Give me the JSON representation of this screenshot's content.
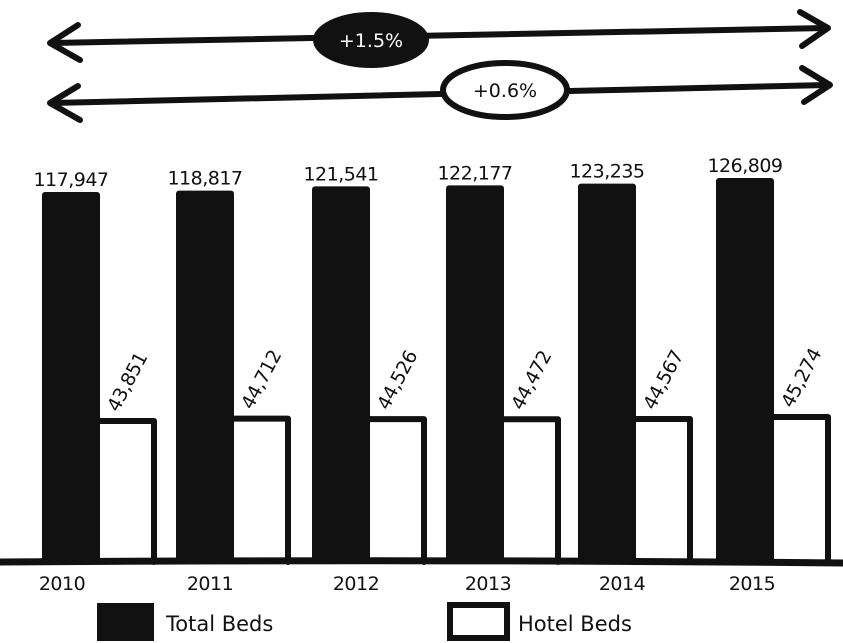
{
  "chart_data": {
    "type": "bar",
    "categories": [
      "2010",
      "2011",
      "2012",
      "2013",
      "2014",
      "2015"
    ],
    "series": [
      {
        "name": "Total Beds",
        "values": [
          117947,
          118817,
          121541,
          122177,
          123235,
          126809
        ],
        "labels": [
          "117,947",
          "118,817",
          "121,541",
          "122,177",
          "123,235",
          "126,809"
        ],
        "color": "#111111"
      },
      {
        "name": "Hotel Beds",
        "values": [
          43851,
          44712,
          44526,
          44472,
          44567,
          45274
        ],
        "labels": [
          "43,851",
          "44,712",
          "44,526",
          "44,472",
          "44,567",
          "45,274"
        ],
        "color": "#ffffff"
      }
    ],
    "annotations": [
      {
        "text": "+1.5%",
        "style": "filled"
      },
      {
        "text": "+0.6%",
        "style": "outlined"
      }
    ],
    "legend": "bottom",
    "grid": false,
    "ylim": [
      0,
      135000
    ]
  }
}
